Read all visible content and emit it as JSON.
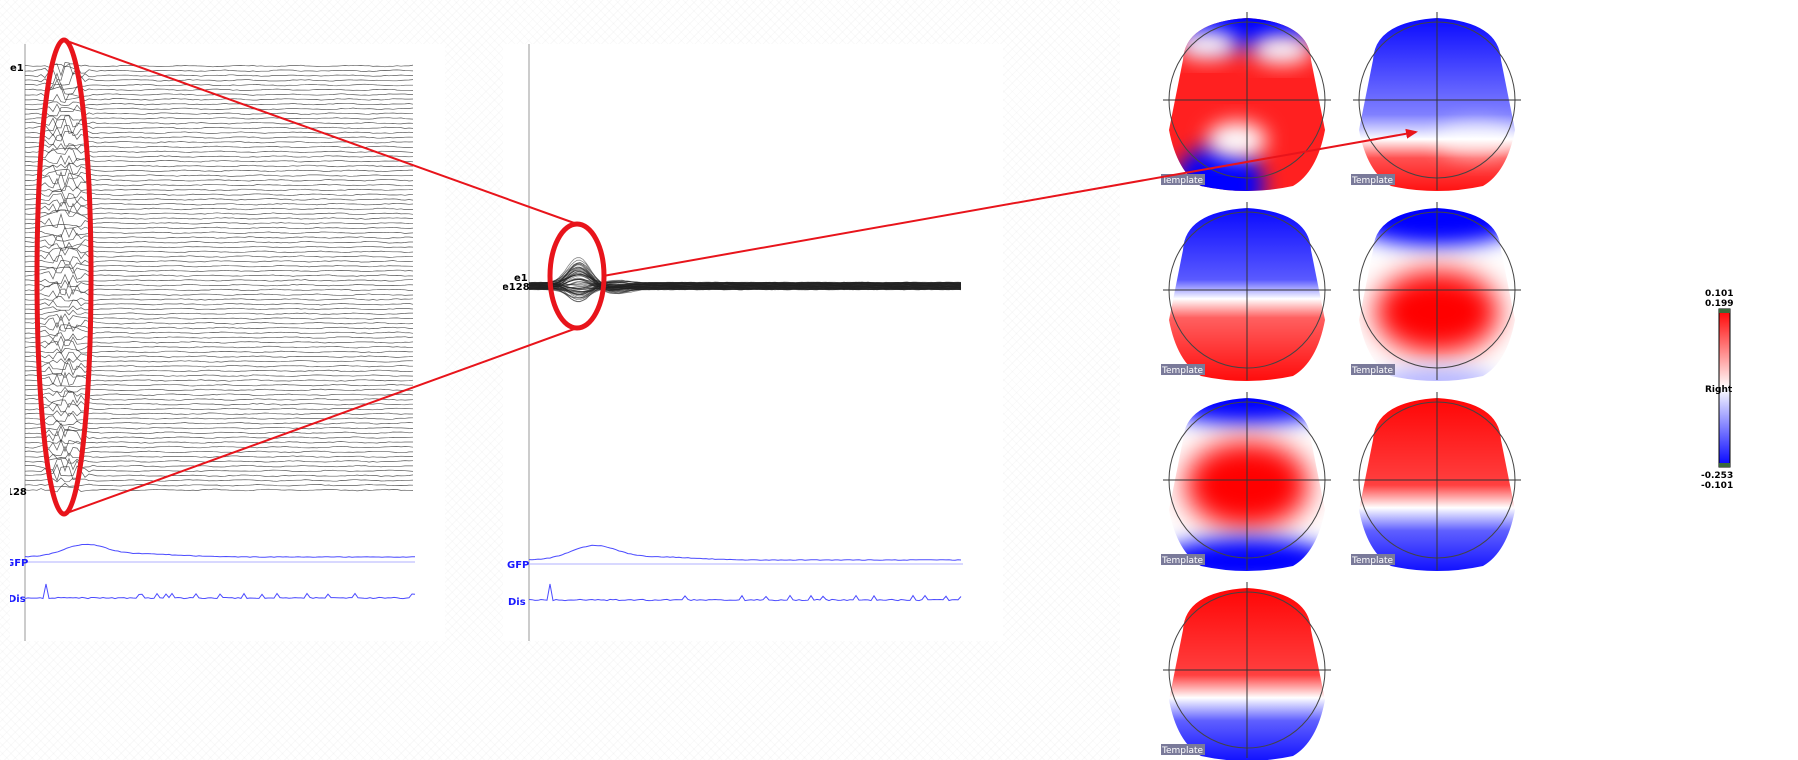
{
  "panel1": {
    "first_channel": "e1",
    "last_channel": "128",
    "gfp_label": "GFP",
    "dis_label": "Dis"
  },
  "panel2": {
    "first_channel": "e1",
    "last_channel": "e128",
    "gfp_label": "GFP",
    "dis_label": "Dis"
  },
  "topomaps": {
    "tag": "Template",
    "maps": [
      "map-1",
      "map-2",
      "map-3",
      "map-4",
      "map-5",
      "map-6",
      "map-7"
    ]
  },
  "colorscale": {
    "max_top": "0.101",
    "max_bottom": "0.199",
    "mid_label": "Right",
    "min_top": "-0.253",
    "min_bottom": "-0.101",
    "colors": {
      "positive": "#ff0000",
      "neutral": "#ffffff",
      "negative": "#0000ff"
    }
  },
  "annotation_color": "#e8141b",
  "trace_color": "#333333",
  "gfp_color": "#4b4bff"
}
